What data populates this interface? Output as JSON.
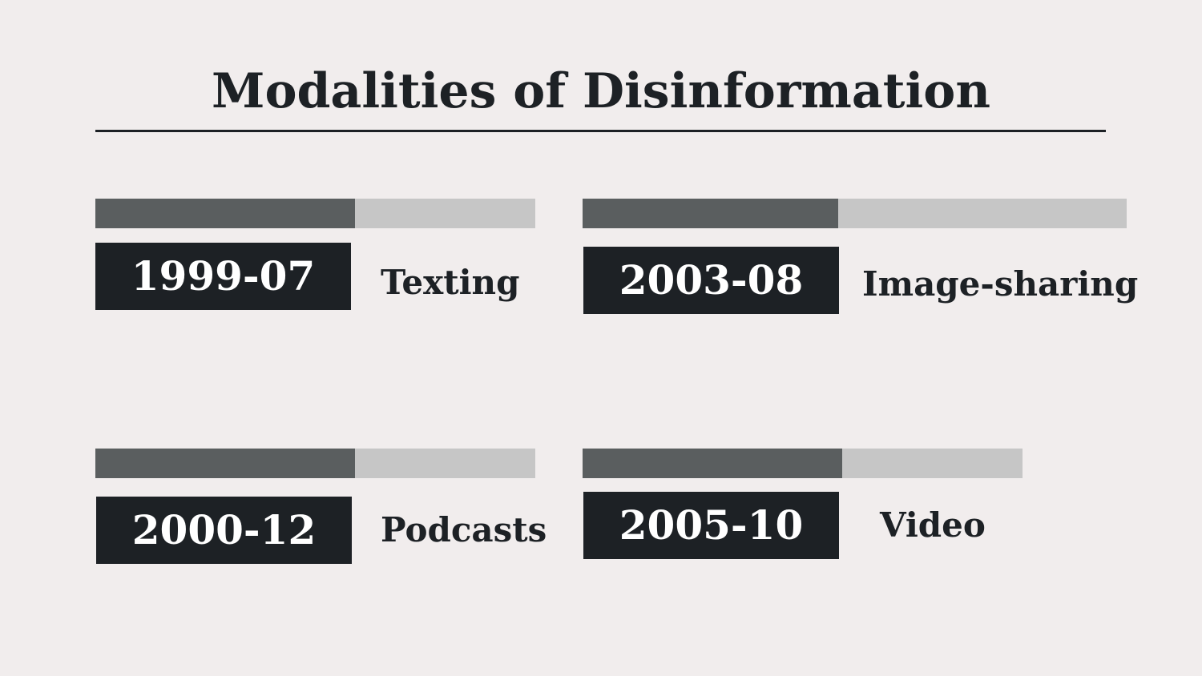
{
  "title": "Modalities of Disinformation",
  "colors": {
    "background": "#f1eded",
    "text": "#1d2125",
    "bar_fill": "#5a5e5f",
    "bar_track": "#c6c6c6",
    "date_box": "#1d2125"
  },
  "items": [
    {
      "date": "1999-07",
      "label": "Texting",
      "progress": 0.59
    },
    {
      "date": "2003-08",
      "label": "Image-sharing",
      "progress": 0.47
    },
    {
      "date": "2000-12",
      "label": "Podcasts",
      "progress": 0.59
    },
    {
      "date": "2005-10",
      "label": "Video",
      "progress": 0.59
    }
  ]
}
